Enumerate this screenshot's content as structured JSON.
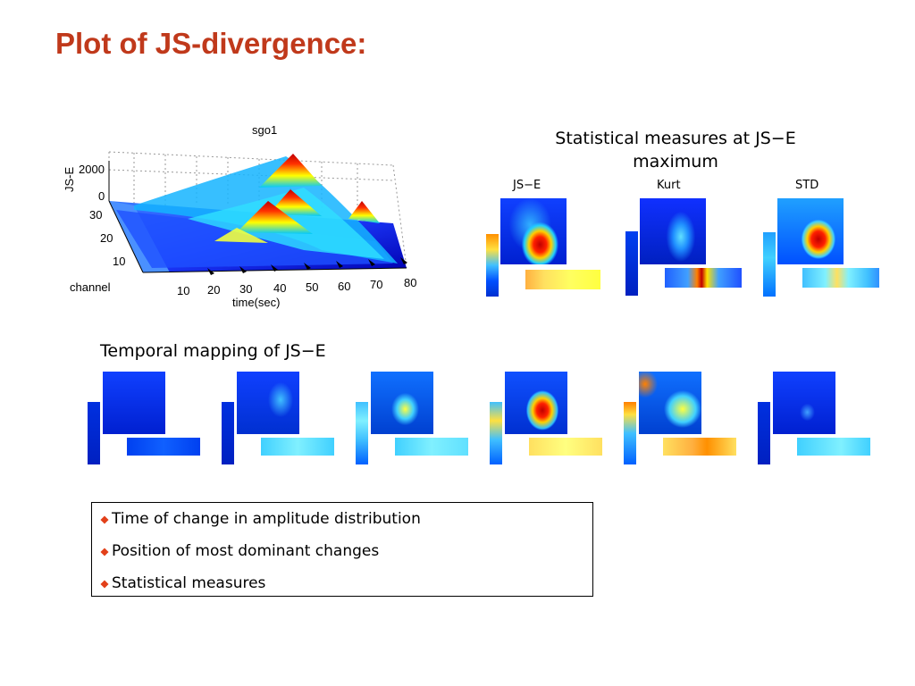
{
  "slide": {
    "title": "Plot of JS-divergence:",
    "stat_heading": "Statistical measures at JS−E\nmaximum",
    "stat_heading_line1": "Statistical measures at JS−E",
    "stat_heading_line2": "maximum",
    "stat_panels": [
      "JS−E",
      "Kurt",
      "STD"
    ],
    "temporal_heading": "Temporal mapping of JS−E",
    "bullets": [
      "Time of change in amplitude distribution",
      "Position of most dominant changes",
      "Statistical measures"
    ]
  },
  "plot3d": {
    "title": "sgo1",
    "zlabel": "JS-E",
    "zticks": [
      "2000",
      "0"
    ],
    "ylabel": "channel",
    "yticks": [
      "30",
      "20",
      "10"
    ],
    "xlabel": "time(sec)",
    "xticks": [
      "10",
      "20",
      "30",
      "40",
      "50",
      "60",
      "70",
      "80"
    ]
  },
  "colors": {
    "title": "#c0391b",
    "bullet": "#e2401a"
  }
}
